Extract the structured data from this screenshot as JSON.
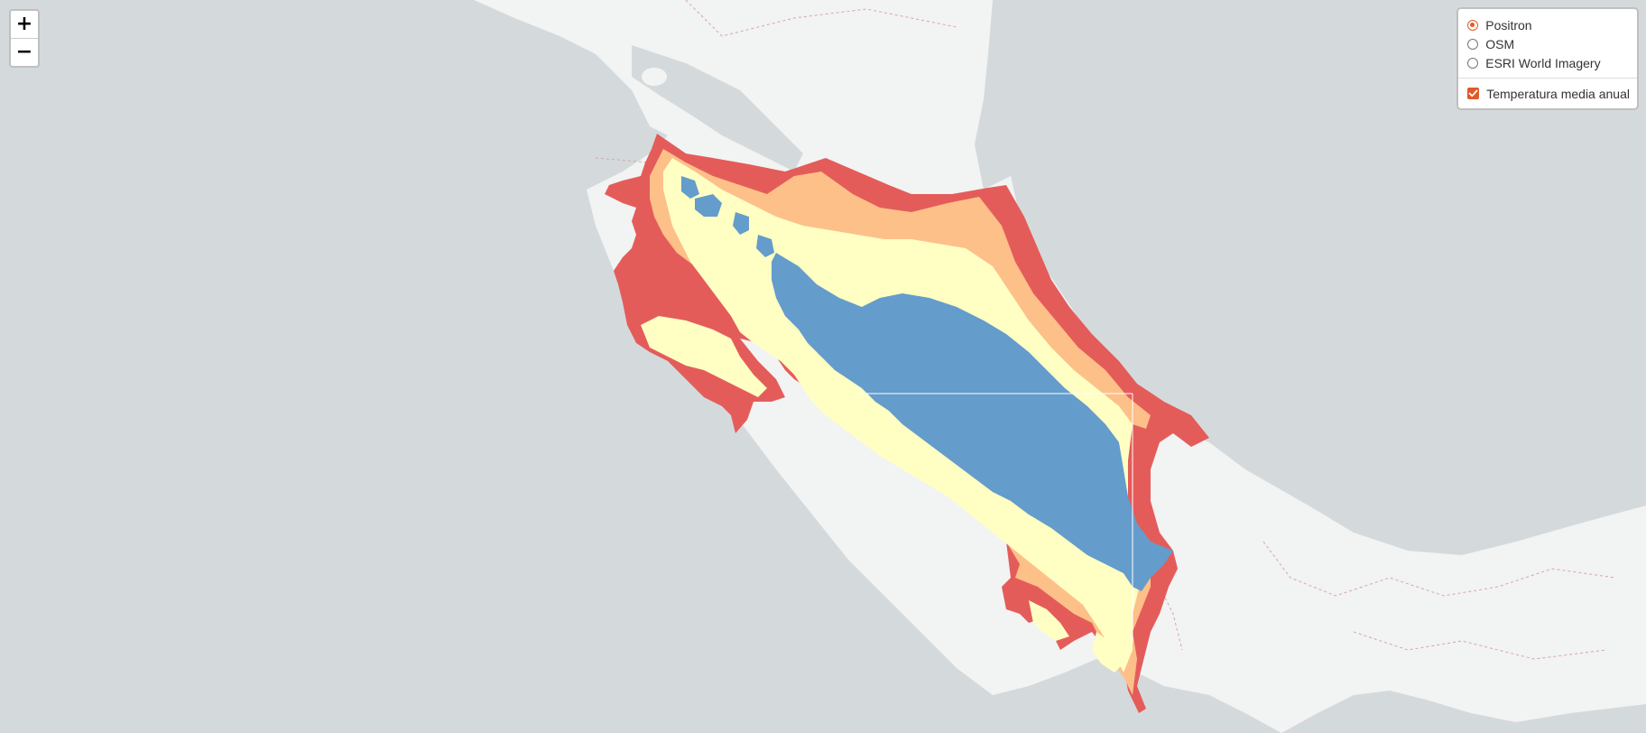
{
  "map": {
    "colors": {
      "water": "#d4dadc",
      "land": "#f2f3f3",
      "border": "#d9a4a4",
      "temp_class_1": "#e45c5a",
      "temp_class_2": "#fdc089",
      "temp_class_3": "#ffffc4",
      "temp_class_4": "#649ccb"
    }
  },
  "zoom": {
    "in_label": "+",
    "out_label": "−"
  },
  "layers": {
    "base": [
      {
        "label": "Positron",
        "checked": true
      },
      {
        "label": "OSM",
        "checked": false
      },
      {
        "label": "ESRI World Imagery",
        "checked": false
      }
    ],
    "overlays": [
      {
        "label": "Temperatura media anual",
        "checked": true
      }
    ]
  }
}
